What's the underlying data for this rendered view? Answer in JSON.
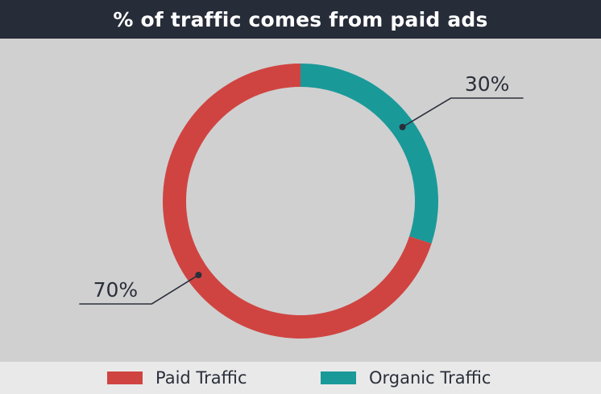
{
  "header": {
    "title": "% of traffic comes from paid ads"
  },
  "chart_data": {
    "type": "pie",
    "variant": "donut",
    "title": "% of traffic comes from paid ads",
    "slices": [
      {
        "label": "Organic Traffic",
        "value": 30,
        "display": "30%",
        "color": "#1a9999"
      },
      {
        "label": "Paid Traffic",
        "value": 70,
        "display": "70%",
        "color": "#cf4441"
      }
    ],
    "legend": "bottom"
  },
  "legend": {
    "items": [
      {
        "label": "Paid Traffic",
        "color": "#cf4441"
      },
      {
        "label": "Organic Traffic",
        "color": "#1a9999"
      }
    ]
  }
}
